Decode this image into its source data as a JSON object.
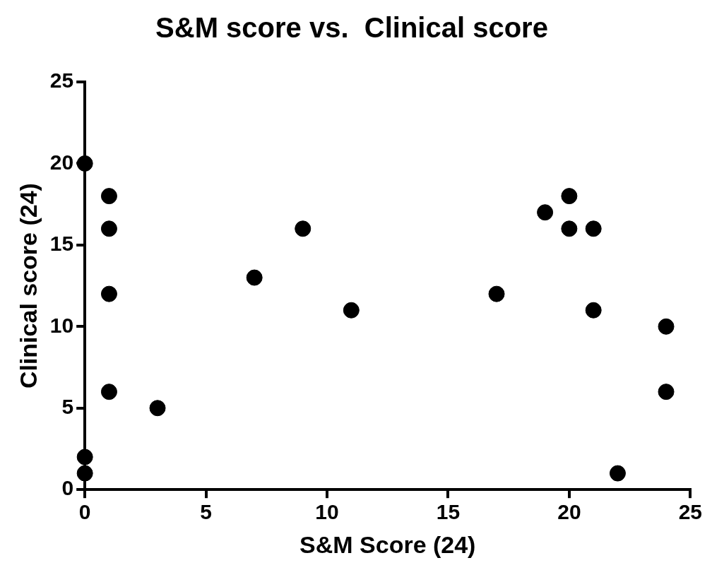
{
  "chart_data": {
    "type": "scatter",
    "title": "S&M score vs.  Clinical score",
    "xlabel": "S&M Score (24)",
    "ylabel": "Clinical score (24)",
    "x": [
      0,
      0,
      0,
      1,
      1,
      1,
      1,
      3,
      7,
      9,
      11,
      17,
      19,
      20,
      20,
      21,
      21,
      22,
      24,
      24
    ],
    "values": [
      20,
      2,
      1,
      18,
      16,
      12,
      6,
      5,
      13,
      16,
      11,
      12,
      17,
      18,
      16,
      16,
      11,
      1,
      10,
      6
    ],
    "color": "#000000",
    "marker": "circle",
    "xlim": [
      0,
      25
    ],
    "xticks": [
      0,
      5,
      10,
      15,
      20,
      25
    ],
    "ylim": [
      0,
      25
    ],
    "yticks": [
      0,
      5,
      10,
      15,
      20,
      25
    ],
    "grid": false,
    "legend": false
  }
}
